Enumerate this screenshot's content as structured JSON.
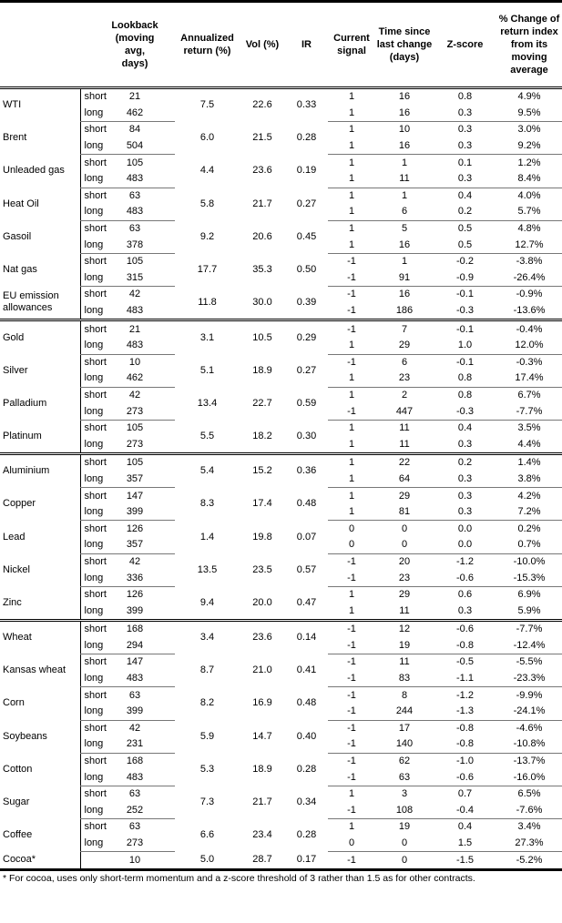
{
  "headers": {
    "name": "",
    "term": "",
    "lookback": "Lookback (moving avg, days)",
    "annualized": "Annualized return (%)",
    "vol": "Vol (%)",
    "ir": "IR",
    "signal": "Current signal",
    "time": "Time since last change (days)",
    "z": "Z-score",
    "pct": "% Change of return index from its moving average"
  },
  "groups": [
    {
      "items": [
        {
          "name": "WTI",
          "ann": "7.5",
          "vol": "22.6",
          "ir": "0.33",
          "rows": [
            [
              "short",
              "21",
              "1",
              "16",
              "0.8",
              "4.9%"
            ],
            [
              "long",
              "462",
              "1",
              "16",
              "0.3",
              "9.5%"
            ]
          ]
        },
        {
          "name": "Brent",
          "ann": "6.0",
          "vol": "21.5",
          "ir": "0.28",
          "rows": [
            [
              "short",
              "84",
              "1",
              "10",
              "0.3",
              "3.0%"
            ],
            [
              "long",
              "504",
              "1",
              "16",
              "0.3",
              "9.2%"
            ]
          ]
        },
        {
          "name": "Unleaded gas",
          "ann": "4.4",
          "vol": "23.6",
          "ir": "0.19",
          "rows": [
            [
              "short",
              "105",
              "1",
              "1",
              "0.1",
              "1.2%"
            ],
            [
              "long",
              "483",
              "1",
              "11",
              "0.3",
              "8.4%"
            ]
          ]
        },
        {
          "name": "Heat Oil",
          "ann": "5.8",
          "vol": "21.7",
          "ir": "0.27",
          "rows": [
            [
              "short",
              "63",
              "1",
              "1",
              "0.4",
              "4.0%"
            ],
            [
              "long",
              "483",
              "1",
              "6",
              "0.2",
              "5.7%"
            ]
          ]
        },
        {
          "name": "Gasoil",
          "ann": "9.2",
          "vol": "20.6",
          "ir": "0.45",
          "rows": [
            [
              "short",
              "63",
              "1",
              "5",
              "0.5",
              "4.8%"
            ],
            [
              "long",
              "378",
              "1",
              "16",
              "0.5",
              "12.7%"
            ]
          ]
        },
        {
          "name": "Nat gas",
          "ann": "17.7",
          "vol": "35.3",
          "ir": "0.50",
          "rows": [
            [
              "short",
              "105",
              "-1",
              "1",
              "-0.2",
              "-3.8%"
            ],
            [
              "long",
              "315",
              "-1",
              "91",
              "-0.9",
              "-26.4%"
            ]
          ]
        },
        {
          "name": "EU emission allowances",
          "ann": "11.8",
          "vol": "30.0",
          "ir": "0.39",
          "rows": [
            [
              "short",
              "42",
              "-1",
              "16",
              "-0.1",
              "-0.9%"
            ],
            [
              "long",
              "483",
              "-1",
              "186",
              "-0.3",
              "-13.6%"
            ]
          ]
        }
      ]
    },
    {
      "items": [
        {
          "name": "Gold",
          "ann": "3.1",
          "vol": "10.5",
          "ir": "0.29",
          "rows": [
            [
              "short",
              "21",
              "-1",
              "7",
              "-0.1",
              "-0.4%"
            ],
            [
              "long",
              "483",
              "1",
              "29",
              "1.0",
              "12.0%"
            ]
          ]
        },
        {
          "name": "Silver",
          "ann": "5.1",
          "vol": "18.9",
          "ir": "0.27",
          "rows": [
            [
              "short",
              "10",
              "-1",
              "6",
              "-0.1",
              "-0.3%"
            ],
            [
              "long",
              "462",
              "1",
              "23",
              "0.8",
              "17.4%"
            ]
          ]
        },
        {
          "name": "Palladium",
          "ann": "13.4",
          "vol": "22.7",
          "ir": "0.59",
          "rows": [
            [
              "short",
              "42",
              "1",
              "2",
              "0.8",
              "6.7%"
            ],
            [
              "long",
              "273",
              "-1",
              "447",
              "-0.3",
              "-7.7%"
            ]
          ]
        },
        {
          "name": "Platinum",
          "ann": "5.5",
          "vol": "18.2",
          "ir": "0.30",
          "rows": [
            [
              "short",
              "105",
              "1",
              "11",
              "0.4",
              "3.5%"
            ],
            [
              "long",
              "273",
              "1",
              "11",
              "0.3",
              "4.4%"
            ]
          ]
        }
      ]
    },
    {
      "items": [
        {
          "name": "Aluminium",
          "ann": "5.4",
          "vol": "15.2",
          "ir": "0.36",
          "rows": [
            [
              "short",
              "105",
              "1",
              "22",
              "0.2",
              "1.4%"
            ],
            [
              "long",
              "357",
              "1",
              "64",
              "0.3",
              "3.8%"
            ]
          ]
        },
        {
          "name": "Copper",
          "ann": "8.3",
          "vol": "17.4",
          "ir": "0.48",
          "rows": [
            [
              "short",
              "147",
              "1",
              "29",
              "0.3",
              "4.2%"
            ],
            [
              "long",
              "399",
              "1",
              "81",
              "0.3",
              "7.2%"
            ]
          ]
        },
        {
          "name": "Lead",
          "ann": "1.4",
          "vol": "19.8",
          "ir": "0.07",
          "rows": [
            [
              "short",
              "126",
              "0",
              "0",
              "0.0",
              "0.2%"
            ],
            [
              "long",
              "357",
              "0",
              "0",
              "0.0",
              "0.7%"
            ]
          ]
        },
        {
          "name": "Nickel",
          "ann": "13.5",
          "vol": "23.5",
          "ir": "0.57",
          "rows": [
            [
              "short",
              "42",
              "-1",
              "20",
              "-1.2",
              "-10.0%"
            ],
            [
              "long",
              "336",
              "-1",
              "23",
              "-0.6",
              "-15.3%"
            ]
          ]
        },
        {
          "name": "Zinc",
          "ann": "9.4",
          "vol": "20.0",
          "ir": "0.47",
          "rows": [
            [
              "short",
              "126",
              "1",
              "29",
              "0.6",
              "6.9%"
            ],
            [
              "long",
              "399",
              "1",
              "11",
              "0.3",
              "5.9%"
            ]
          ]
        }
      ]
    },
    {
      "items": [
        {
          "name": "Wheat",
          "ann": "3.4",
          "vol": "23.6",
          "ir": "0.14",
          "rows": [
            [
              "short",
              "168",
              "-1",
              "12",
              "-0.6",
              "-7.7%"
            ],
            [
              "long",
              "294",
              "-1",
              "19",
              "-0.8",
              "-12.4%"
            ]
          ]
        },
        {
          "name": "Kansas wheat",
          "ann": "8.7",
          "vol": "21.0",
          "ir": "0.41",
          "rows": [
            [
              "short",
              "147",
              "-1",
              "11",
              "-0.5",
              "-5.5%"
            ],
            [
              "long",
              "483",
              "-1",
              "83",
              "-1.1",
              "-23.3%"
            ]
          ]
        },
        {
          "name": "Corn",
          "ann": "8.2",
          "vol": "16.9",
          "ir": "0.48",
          "rows": [
            [
              "short",
              "63",
              "-1",
              "8",
              "-1.2",
              "-9.9%"
            ],
            [
              "long",
              "399",
              "-1",
              "244",
              "-1.3",
              "-24.1%"
            ]
          ]
        },
        {
          "name": "Soybeans",
          "ann": "5.9",
          "vol": "14.7",
          "ir": "0.40",
          "rows": [
            [
              "short",
              "42",
              "-1",
              "17",
              "-0.8",
              "-4.6%"
            ],
            [
              "long",
              "231",
              "-1",
              "140",
              "-0.8",
              "-10.8%"
            ]
          ]
        },
        {
          "name": "Cotton",
          "ann": "5.3",
          "vol": "18.9",
          "ir": "0.28",
          "rows": [
            [
              "short",
              "168",
              "-1",
              "62",
              "-1.0",
              "-13.7%"
            ],
            [
              "long",
              "483",
              "-1",
              "63",
              "-0.6",
              "-16.0%"
            ]
          ]
        },
        {
          "name": "Sugar",
          "ann": "7.3",
          "vol": "21.7",
          "ir": "0.34",
          "rows": [
            [
              "short",
              "63",
              "1",
              "3",
              "0.7",
              "6.5%"
            ],
            [
              "long",
              "252",
              "-1",
              "108",
              "-0.4",
              "-7.6%"
            ]
          ]
        },
        {
          "name": "Coffee",
          "ann": "6.6",
          "vol": "23.4",
          "ir": "0.28",
          "rows": [
            [
              "short",
              "63",
              "1",
              "19",
              "0.4",
              "3.4%"
            ],
            [
              "long",
              "273",
              "0",
              "0",
              "1.5",
              "27.3%"
            ]
          ]
        },
        {
          "name": "Cocoa*",
          "ann": "5.0",
          "vol": "28.7",
          "ir": "0.17",
          "rows": [
            [
              "",
              "10",
              "-1",
              "0",
              "-1.5",
              "-5.2%"
            ]
          ]
        }
      ]
    }
  ],
  "footnote": "* For cocoa, uses only short-term momentum and a z-score threshold of 3 rather than 1.5 as for other contracts."
}
